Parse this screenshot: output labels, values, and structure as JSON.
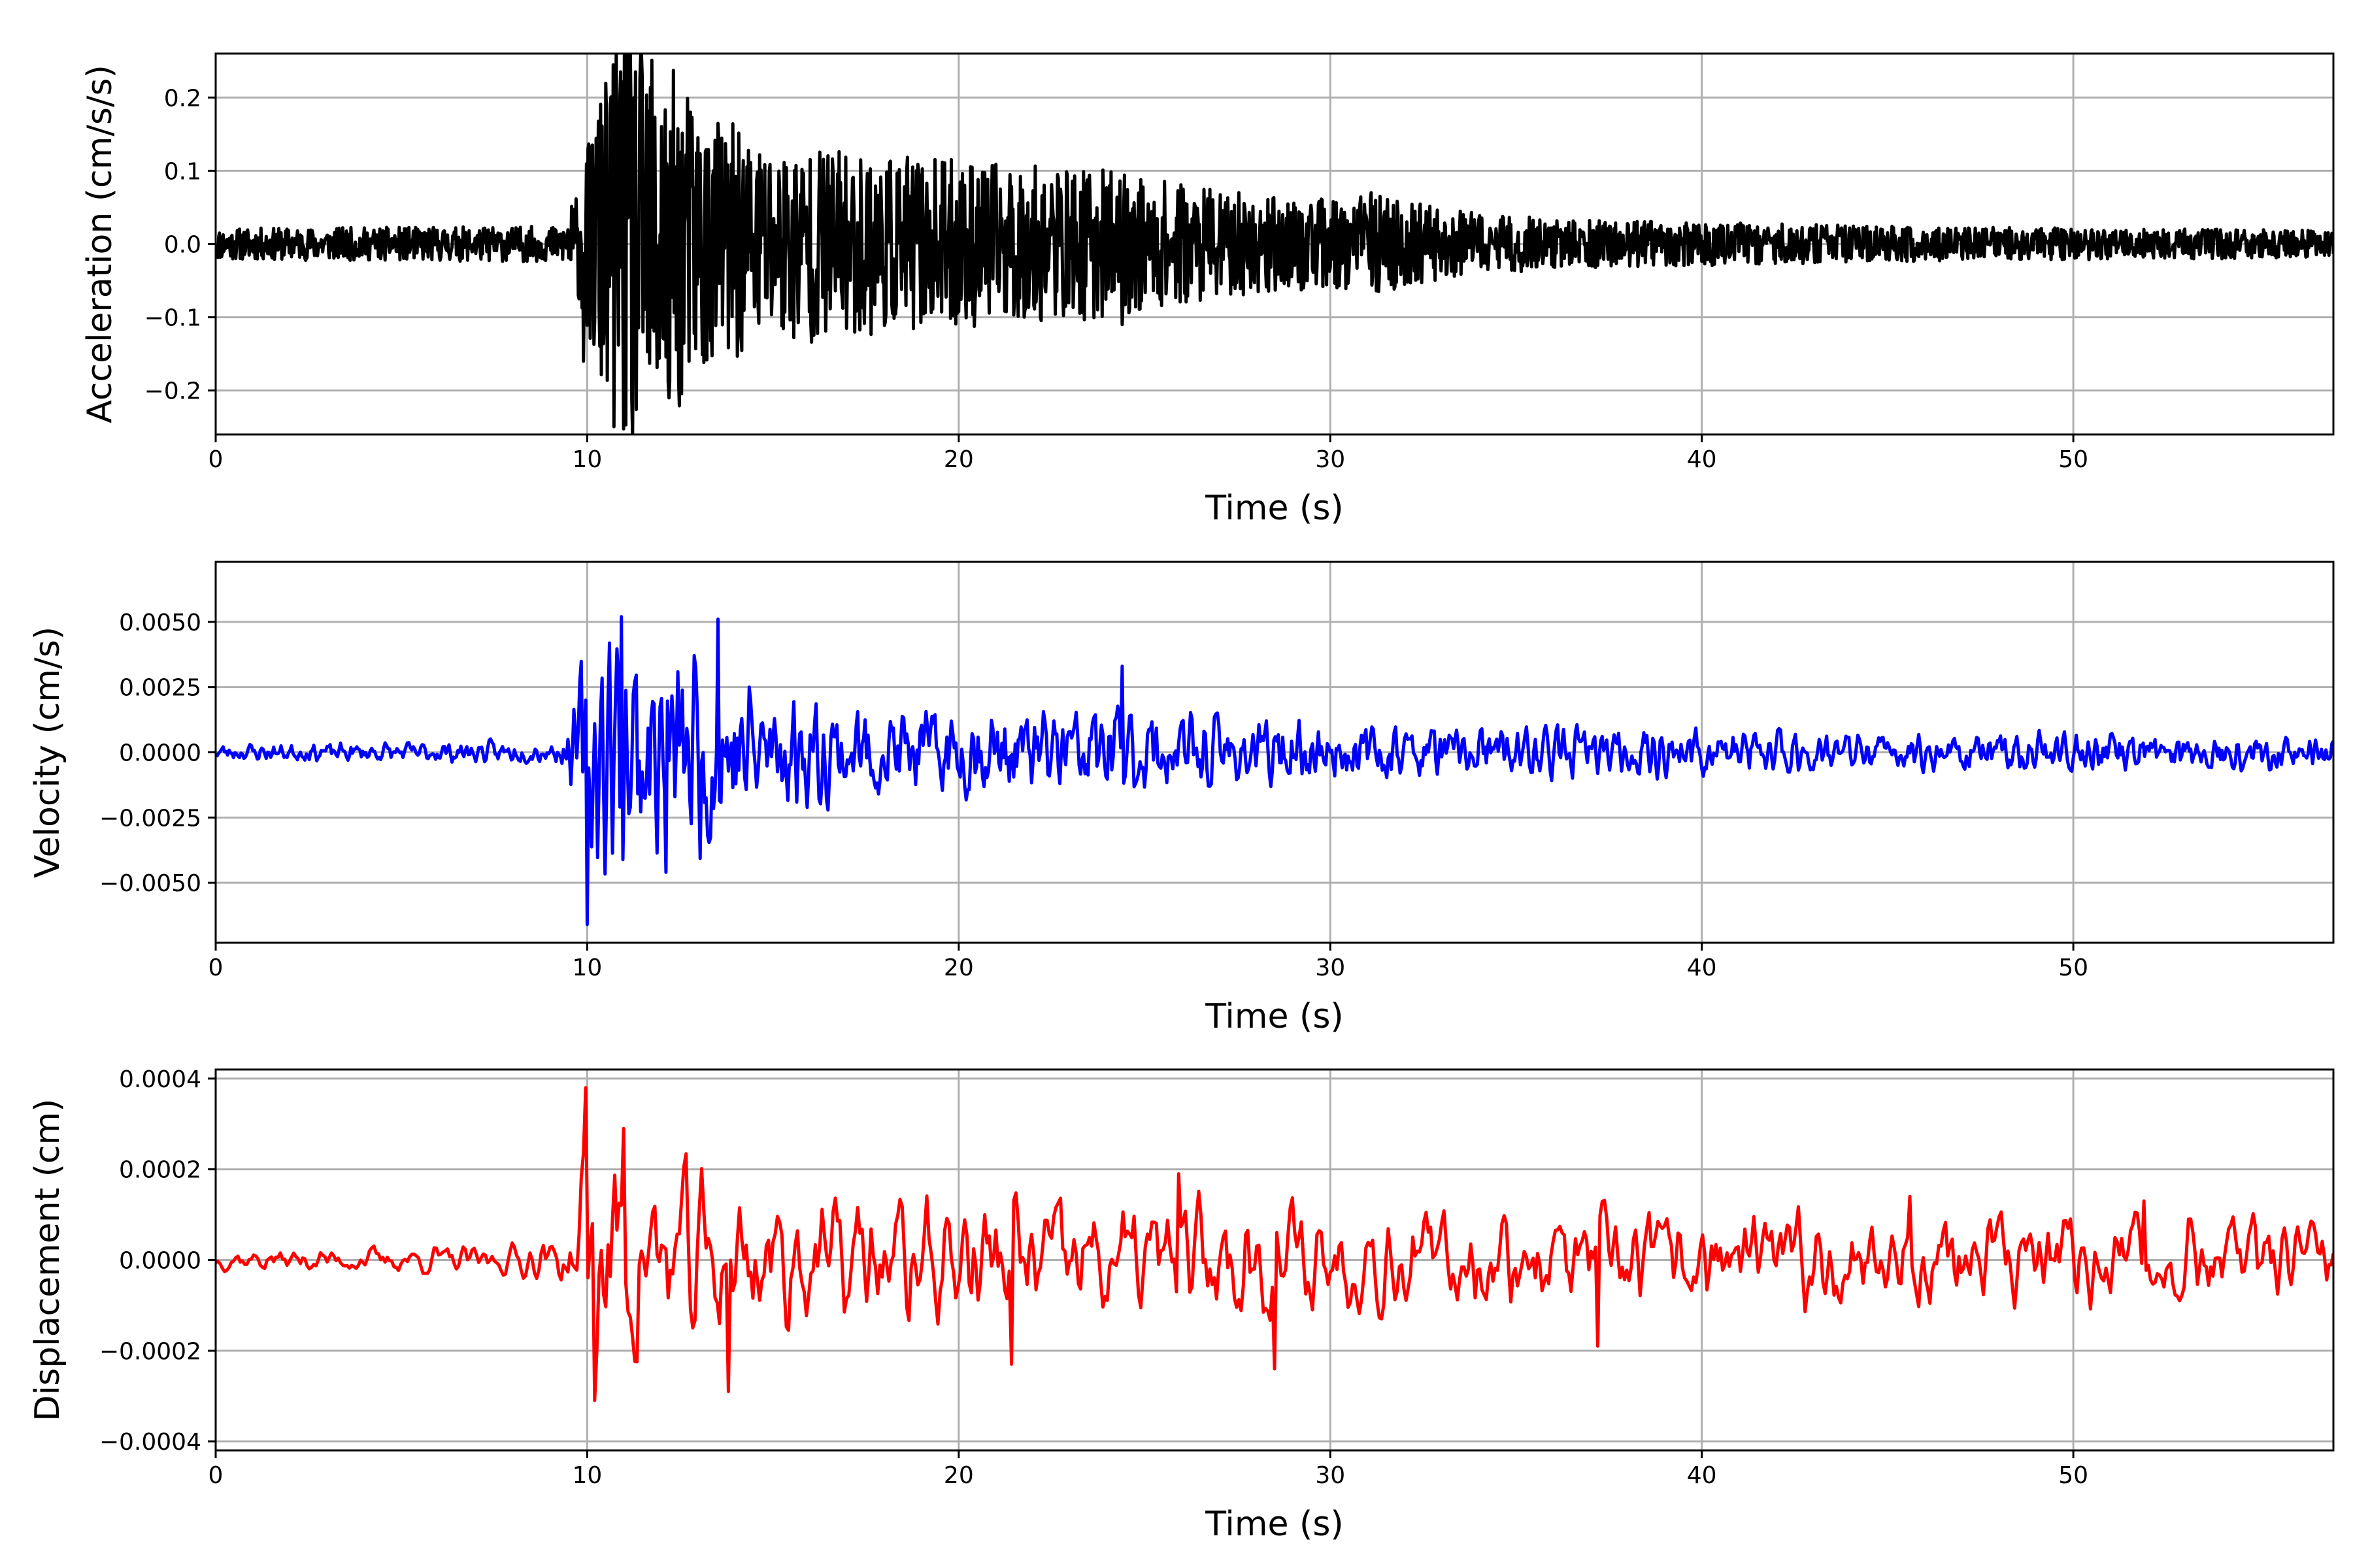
{
  "chart_data": [
    {
      "type": "line",
      "id": "acceleration",
      "xlabel": "Time (s)",
      "ylabel": "Acceleration (cm/s/s)",
      "xlim": [
        0,
        57
      ],
      "ylim": [
        -0.26,
        0.26
      ],
      "xticks": [
        0,
        10,
        20,
        30,
        40,
        50
      ],
      "xtick_labels": [
        "0",
        "10",
        "20",
        "30",
        "40",
        "50"
      ],
      "yticks": [
        -0.2,
        -0.1,
        0.0,
        0.1,
        0.2
      ],
      "ytick_labels": [
        "−0.2",
        "−0.1",
        "0.0",
        "0.1",
        "0.2"
      ],
      "grid": true,
      "color": "#000000",
      "envelope": {
        "time": [
          0,
          9.3,
          9.8,
          10.3,
          11.0,
          12.0,
          13.0,
          14.5,
          16.0,
          18.0,
          20.0,
          22.0,
          24.0,
          26.0,
          28.0,
          30.0,
          31.5,
          33.0,
          36.0,
          40.0,
          45.0,
          50.0,
          57.0
        ],
        "amplitude": [
          0.016,
          0.018,
          0.06,
          0.15,
          0.22,
          0.2,
          0.14,
          0.11,
          0.1,
          0.09,
          0.085,
          0.08,
          0.075,
          0.06,
          0.05,
          0.045,
          0.05,
          0.035,
          0.025,
          0.022,
          0.018,
          0.016,
          0.014
        ]
      },
      "peaks": [
        {
          "x": 10.9,
          "y": 0.235
        },
        {
          "x": 11.2,
          "y": -0.21
        },
        {
          "x": 12.2,
          "y": -0.21
        },
        {
          "x": 9.9,
          "y": -0.16
        },
        {
          "x": 24.4,
          "y": -0.11
        },
        {
          "x": 31.1,
          "y": 0.07
        }
      ]
    },
    {
      "type": "line",
      "id": "velocity",
      "xlabel": "Time (s)",
      "ylabel": "Velocity (cm/s)",
      "xlim": [
        0,
        57
      ],
      "ylim": [
        -0.0073,
        0.0073
      ],
      "xticks": [
        0,
        10,
        20,
        30,
        40,
        50
      ],
      "xtick_labels": [
        "0",
        "10",
        "20",
        "30",
        "40",
        "50"
      ],
      "yticks": [
        -0.005,
        -0.0025,
        0.0,
        0.0025,
        0.005
      ],
      "ytick_labels": [
        "−0.0050",
        "−0.0025",
        "0.0000",
        "0.0025",
        "0.0050"
      ],
      "grid": true,
      "color": "#0000ff",
      "envelope": {
        "time": [
          0,
          9.3,
          9.7,
          10.0,
          11.0,
          12.0,
          13.5,
          15.0,
          17.0,
          20.0,
          22.0,
          24.0,
          26.0,
          30.0,
          35.0,
          40.0,
          45.0,
          50.0,
          57.0
        ],
        "amplitude": [
          0.0003,
          0.0004,
          0.002,
          0.005,
          0.0045,
          0.0038,
          0.004,
          0.0022,
          0.0018,
          0.0016,
          0.0017,
          0.0018,
          0.0014,
          0.001,
          0.0009,
          0.0009,
          0.0007,
          0.0007,
          0.0006
        ]
      },
      "peaks": [
        {
          "x": 10.0,
          "y": -0.0066
        },
        {
          "x": 10.9,
          "y": 0.0052
        },
        {
          "x": 13.5,
          "y": 0.0051
        },
        {
          "x": 12.1,
          "y": -0.0046
        },
        {
          "x": 24.4,
          "y": 0.0033
        }
      ]
    },
    {
      "type": "line",
      "id": "displacement",
      "xlabel": "Time (s)",
      "ylabel": "Displacement (cm)",
      "xlim": [
        0,
        57
      ],
      "ylim": [
        -0.00042,
        0.00042
      ],
      "xticks": [
        0,
        10,
        20,
        30,
        40,
        50
      ],
      "xtick_labels": [
        "0",
        "10",
        "20",
        "30",
        "40",
        "50"
      ],
      "yticks": [
        -0.0004,
        -0.0002,
        0.0,
        0.0002,
        0.0004
      ],
      "ytick_labels": [
        "−0.0004",
        "−0.0002",
        "0.0000",
        "0.0002",
        "0.0004"
      ],
      "grid": true,
      "color": "#ff0000",
      "envelope": {
        "time": [
          0,
          8.0,
          9.5,
          10.0,
          11.0,
          12.0,
          14.0,
          16.0,
          20.0,
          24.0,
          28.0,
          32.0,
          36.0,
          40.0,
          45.0,
          50.0,
          57.0
        ],
        "amplitude": [
          2e-05,
          3e-05,
          5e-05,
          0.0003,
          0.00025,
          0.00018,
          0.00016,
          0.00013,
          0.00013,
          0.00013,
          0.00012,
          0.0001,
          0.0001,
          0.0001,
          0.0001,
          0.0001,
          8e-05
        ]
      },
      "peaks": [
        {
          "x": 9.95,
          "y": 0.00038
        },
        {
          "x": 10.2,
          "y": -0.00031
        },
        {
          "x": 11.0,
          "y": 0.00029
        },
        {
          "x": 13.8,
          "y": -0.00029
        },
        {
          "x": 21.4,
          "y": -0.00023
        },
        {
          "x": 25.9,
          "y": 0.00019
        },
        {
          "x": 28.5,
          "y": -0.00024
        },
        {
          "x": 37.2,
          "y": -0.00019
        },
        {
          "x": 45.6,
          "y": 0.00014
        },
        {
          "x": 51.9,
          "y": 0.00013
        }
      ]
    }
  ]
}
